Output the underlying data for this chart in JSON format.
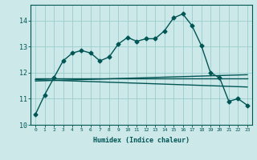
{
  "xlabel": "Humidex (Indice chaleur)",
  "background_color": "#cce8e8",
  "grid_color": "#99cccc",
  "line_color": "#005555",
  "xlim": [
    -0.5,
    23.5
  ],
  "ylim": [
    10.0,
    14.6
  ],
  "yticks": [
    10,
    11,
    12,
    13,
    14
  ],
  "xticks": [
    0,
    1,
    2,
    3,
    4,
    5,
    6,
    7,
    8,
    9,
    10,
    11,
    12,
    13,
    14,
    15,
    16,
    17,
    18,
    19,
    20,
    21,
    22,
    23
  ],
  "series1_x": [
    0,
    1,
    2,
    3,
    4,
    5,
    6,
    7,
    8,
    9,
    10,
    11,
    12,
    13,
    14,
    15,
    16,
    17,
    18,
    19,
    20,
    21,
    22,
    23
  ],
  "series1_y": [
    10.4,
    11.15,
    11.8,
    12.45,
    12.75,
    12.85,
    12.75,
    12.45,
    12.6,
    13.1,
    13.35,
    13.2,
    13.3,
    13.3,
    13.6,
    14.1,
    14.25,
    13.8,
    13.05,
    12.0,
    11.8,
    10.9,
    11.0,
    10.75
  ],
  "series2_x": [
    0,
    23
  ],
  "series2_y": [
    11.78,
    11.78
  ],
  "series3_x": [
    0,
    23
  ],
  "series3_y": [
    11.68,
    11.92
  ],
  "series4_x": [
    0,
    23
  ],
  "series4_y": [
    11.73,
    11.45
  ],
  "marker": "D",
  "markersize": 2.5,
  "linewidth": 1.0
}
